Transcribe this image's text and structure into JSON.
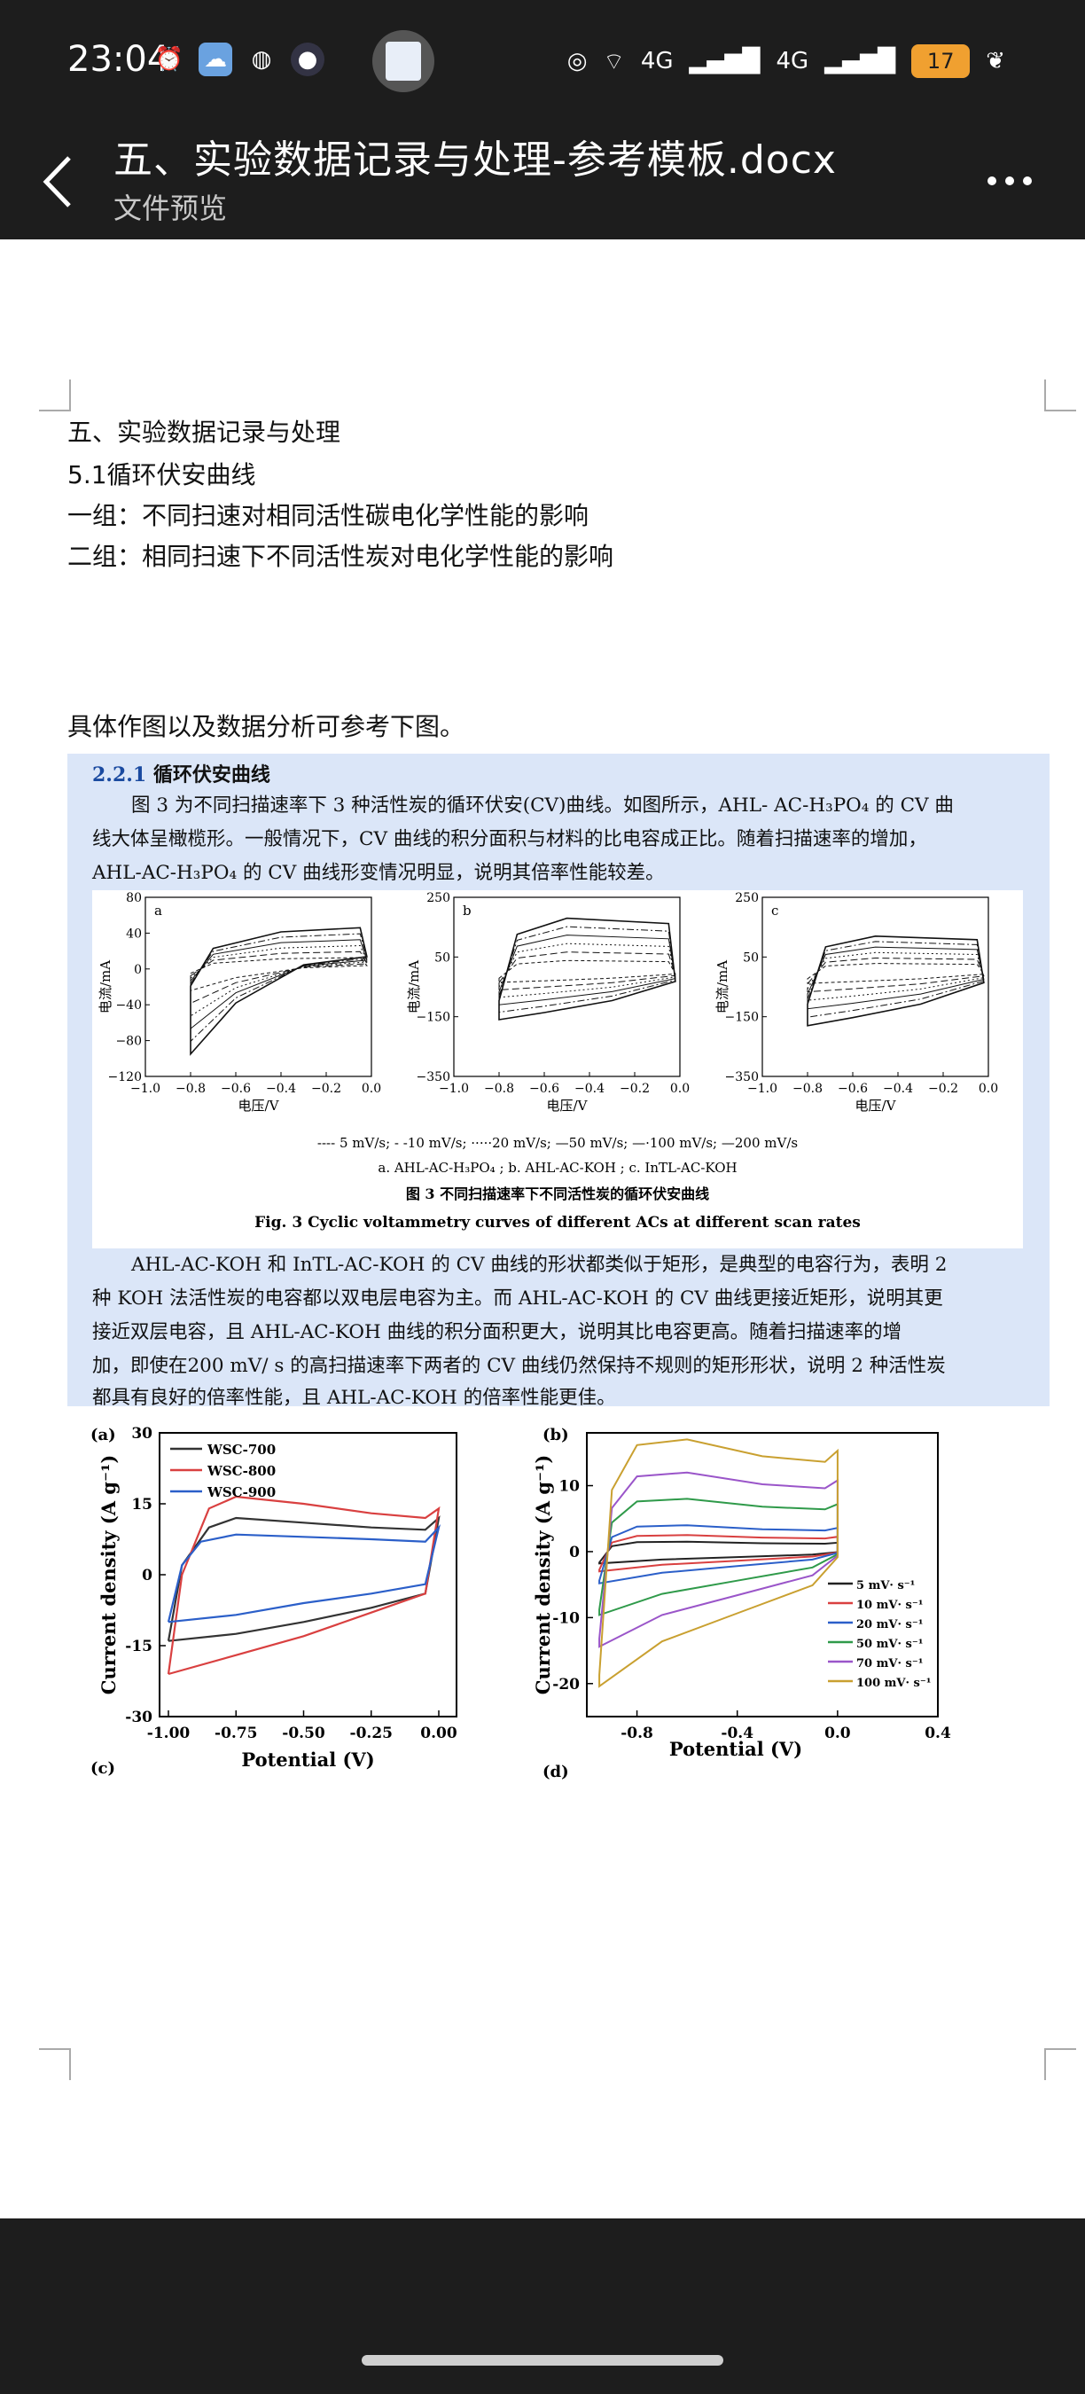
{
  "status": {
    "time": "23:04",
    "battery": "17",
    "net1": "4G",
    "net2": "4G"
  },
  "appbar": {
    "title": "五、实验数据记录与处理-参考模板.docx",
    "subtitle": "文件预览"
  },
  "doc": {
    "lines": [
      "五、实验数据记录与处理",
      "5.1循环伏安曲线",
      "一组：不同扫速对相同活性碳电化学性能的影响",
      "二组：相同扫速下不同活性炭对电化学性能的影响",
      "具体作图以及数据分析可参考下图。"
    ],
    "ref": {
      "section_no": "2.2.1",
      "section_title": "循环伏安曲线",
      "para1_l1": "图 3 为不同扫描速率下 3 种活性炭的循环伏安(CV)曲线。如图所示，AHL- AC-H₃PO₄ 的 CV 曲",
      "para1_l2": "线大体呈橄榄形。一般情况下，CV 曲线的积分面积与材料的比电容成正比。随着扫描速率的增加，",
      "para1_l3": "AHL-AC-H₃PO₄ 的 CV 曲线形变情况明显，说明其倍率性能较差。",
      "para2_l1": "AHL-AC-KOH 和 InTL-AC-KOH 的 CV 曲线的形状都类似于矩形，是典型的电容行为，表明 2",
      "para2_l2": "种 KOH 法活性炭的电容都以双电层电容为主。而 AHL-AC-KOH 的 CV 曲线更接近矩形，说明其更",
      "para2_l3": "接近双层电容，且 AHL-AC-KOH 曲线的积分面积更大，说明其比电容更高。随着扫描速率的增",
      "para2_l4": "加，即使在200 mV/ s 的高扫描速率下两者的 CV 曲线仍然保持不规则的矩形形状，说明 2 种活性炭",
      "para2_l5": "都具有良好的倍率性能，且 AHL-AC-KOH 的倍率性能更佳。",
      "fig3_legend": "---- 5 mV/s; - -10 mV/s; ·····20 mV/s; —50 mV/s; —·100 mV/s; —200 mV/s",
      "fig3_sub": "a. AHL-AC-H₃PO₄ ; b. AHL-AC-KOH ; c. InTL-AC-KOH",
      "fig3_caption_cn": "图 3   不同扫描速率下不同活性炭的循环伏安曲线",
      "fig3_caption_en": "Fig. 3   Cyclic voltammetry curves of different ACs at different scan rates"
    }
  },
  "chart_data": [
    {
      "type": "line",
      "panel": "a",
      "xlabel": "电压/V",
      "ylabel": "电流/mA",
      "xlim": [
        -1.0,
        0.0
      ],
      "ylim": [
        -120,
        80
      ],
      "xticks": [
        "−1.0",
        "−0.8",
        "−0.6",
        "−0.4",
        "−0.2",
        "0.0"
      ],
      "yticks": [
        "−120",
        "−80",
        "−40",
        "0",
        "40",
        "80"
      ]
    },
    {
      "type": "line",
      "panel": "b",
      "xlabel": "电压/V",
      "ylabel": "电流/mA",
      "xlim": [
        -1.0,
        0.0
      ],
      "ylim": [
        -350,
        250
      ],
      "xticks": [
        "−1.0",
        "−0.8",
        "−0.6",
        "−0.4",
        "−0.2",
        "0.0"
      ],
      "yticks": [
        "−350",
        "−150",
        "50",
        "250"
      ]
    },
    {
      "type": "line",
      "panel": "c",
      "xlabel": "电压/V",
      "ylabel": "电流/mA",
      "xlim": [
        -1.0,
        0.0
      ],
      "ylim": [
        -350,
        250
      ],
      "xticks": [
        "−1.0",
        "−0.8",
        "−0.6",
        "−0.4",
        "−0.2",
        "0.0"
      ],
      "yticks": [
        "−350",
        "−150",
        "50",
        "250"
      ]
    },
    {
      "type": "line",
      "panel": "(a)",
      "xlabel": "Potential (V)",
      "ylabel": "Current density (A g⁻¹)",
      "xlim": [
        -1.0,
        0.0
      ],
      "ylim": [
        -30,
        30
      ],
      "xticks": [
        "-1.00",
        "-0.75",
        "-0.50",
        "-0.25",
        "0.00"
      ],
      "yticks": [
        "-30",
        "-15",
        "0",
        "15",
        "30"
      ],
      "series": [
        {
          "name": "WSC-700",
          "color": "#333333",
          "upper": [
            [
              -1.0,
              -14
            ],
            [
              -0.95,
              2
            ],
            [
              -0.85,
              10
            ],
            [
              -0.75,
              12
            ],
            [
              -0.5,
              11
            ],
            [
              -0.25,
              10
            ],
            [
              -0.05,
              9.5
            ],
            [
              0.0,
              12
            ]
          ],
          "lower": [
            [
              0.0,
              12
            ],
            [
              -0.05,
              -4
            ],
            [
              -0.25,
              -7
            ],
            [
              -0.5,
              -10
            ],
            [
              -0.75,
              -12.5
            ],
            [
              -1.0,
              -14
            ]
          ]
        },
        {
          "name": "WSC-800",
          "color": "#d94040",
          "upper": [
            [
              -1.0,
              -21
            ],
            [
              -0.95,
              0
            ],
            [
              -0.85,
              14
            ],
            [
              -0.75,
              16.5
            ],
            [
              -0.5,
              15
            ],
            [
              -0.25,
              13
            ],
            [
              -0.05,
              12
            ],
            [
              0.0,
              14
            ]
          ],
          "lower": [
            [
              0.0,
              14
            ],
            [
              -0.05,
              -4
            ],
            [
              -0.25,
              -8
            ],
            [
              -0.5,
              -13
            ],
            [
              -0.75,
              -17
            ],
            [
              -1.0,
              -21
            ]
          ]
        },
        {
          "name": "WSC-900",
          "color": "#2b5fc9",
          "upper": [
            [
              -1.0,
              -10
            ],
            [
              -0.95,
              2
            ],
            [
              -0.88,
              7
            ],
            [
              -0.75,
              8.5
            ],
            [
              -0.5,
              8
            ],
            [
              -0.25,
              7.5
            ],
            [
              -0.05,
              7
            ],
            [
              0.0,
              10
            ]
          ],
          "lower": [
            [
              0.0,
              10
            ],
            [
              -0.05,
              -2
            ],
            [
              -0.25,
              -4
            ],
            [
              -0.5,
              -6
            ],
            [
              -0.75,
              -8.5
            ],
            [
              -1.0,
              -10
            ]
          ]
        }
      ]
    },
    {
      "type": "line",
      "panel": "(b)",
      "xlabel": "Potential (V)",
      "ylabel": "Current density (A g⁻¹)",
      "xlim": [
        -1.0,
        0.4
      ],
      "ylim": [
        -25,
        18
      ],
      "xticks": [
        "-0.8",
        "-0.4",
        "0.0",
        "0.4"
      ],
      "yticks": [
        "-20",
        "-10",
        "0",
        "10"
      ],
      "series": [
        {
          "name": "5 mV· s⁻¹",
          "color": "#222222",
          "amp": 1.5
        },
        {
          "name": "10 mV· s⁻¹",
          "color": "#d94040",
          "amp": 2.5
        },
        {
          "name": "20 mV· s⁻¹",
          "color": "#2b5fc9",
          "amp": 4
        },
        {
          "name": "50 mV· s⁻¹",
          "color": "#2f9a4a",
          "amp": 8
        },
        {
          "name": "70 mV· s⁻¹",
          "color": "#9a55c9",
          "amp": 12
        },
        {
          "name": "100 mV· s⁻¹",
          "color": "#c9a030",
          "amp": 17
        }
      ]
    }
  ],
  "bottom_fig": {
    "label_a": "(a)",
    "label_b": "(b)",
    "label_c": "(c)",
    "label_d": "(d)"
  }
}
